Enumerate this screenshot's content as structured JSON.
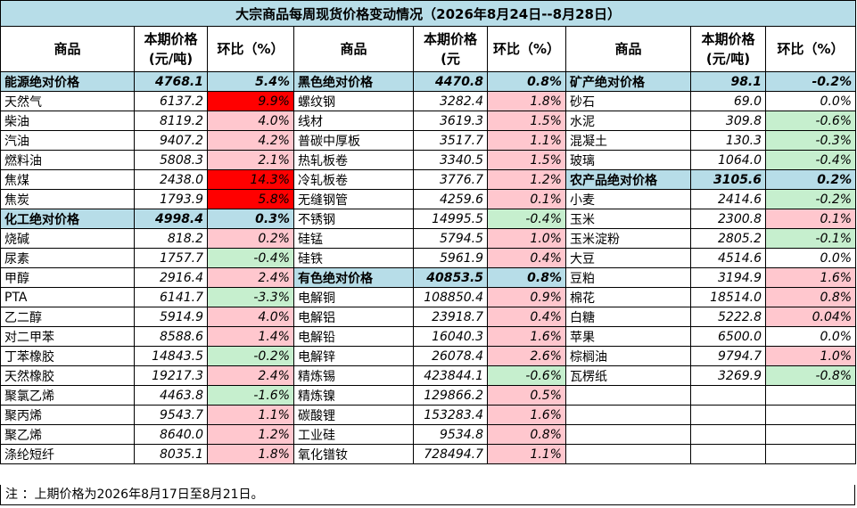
{
  "title": "大宗商品每周现货价格变动情况（2026年8月24日--8月28日）",
  "headers": {
    "name": "商品",
    "price": "本期价格\n(元/吨)",
    "price_col2": "本期价格\n(元",
    "change": "环比（%）"
  },
  "rows": [
    [
      {
        "n": "能源绝对价格",
        "p": "4768.1",
        "c": "5.4%",
        "g": true
      },
      {
        "n": "黑色绝对价格",
        "p": "4470.8",
        "c": "0.8%",
        "g": true
      },
      {
        "n": "矿产绝对价格",
        "p": "98.1",
        "c": "-0.2%",
        "g": true
      }
    ],
    [
      {
        "n": "天然气",
        "p": "6137.2",
        "c": "9.9%",
        "s": "pos-strong"
      },
      {
        "n": "螺纹钢",
        "p": "3282.4",
        "c": "1.8%",
        "s": "pos"
      },
      {
        "n": "砂石",
        "p": "69.0",
        "c": "0.0%",
        "s": "flat"
      }
    ],
    [
      {
        "n": "柴油",
        "p": "8119.2",
        "c": "4.0%",
        "s": "pos"
      },
      {
        "n": "线材",
        "p": "3619.3",
        "c": "1.5%",
        "s": "pos"
      },
      {
        "n": "水泥",
        "p": "309.8",
        "c": "-0.6%",
        "s": "neg"
      }
    ],
    [
      {
        "n": "汽油",
        "p": "9407.2",
        "c": "4.2%",
        "s": "pos"
      },
      {
        "n": "普碳中厚板",
        "p": "3517.7",
        "c": "1.1%",
        "s": "pos"
      },
      {
        "n": "混凝土",
        "p": "130.3",
        "c": "-0.3%",
        "s": "neg"
      }
    ],
    [
      {
        "n": "燃料油",
        "p": "5808.3",
        "c": "2.1%",
        "s": "pos"
      },
      {
        "n": "热轧板卷",
        "p": "3340.5",
        "c": "1.5%",
        "s": "pos"
      },
      {
        "n": "玻璃",
        "p": "1064.0",
        "c": "-0.4%",
        "s": "neg"
      }
    ],
    [
      {
        "n": "焦煤",
        "p": "2438.0",
        "c": "14.3%",
        "s": "pos-strong"
      },
      {
        "n": "冷轧板卷",
        "p": "3776.7",
        "c": "1.2%",
        "s": "pos"
      },
      {
        "n": "农产品绝对价格",
        "p": "3105.6",
        "c": "0.2%",
        "g": true
      }
    ],
    [
      {
        "n": "焦炭",
        "p": "1793.9",
        "c": "5.8%",
        "s": "pos-strong"
      },
      {
        "n": "无缝钢管",
        "p": "4259.6",
        "c": "0.1%",
        "s": "pos"
      },
      {
        "n": "小麦",
        "p": "2414.6",
        "c": "-0.2%",
        "s": "neg"
      }
    ],
    [
      {
        "n": "化工绝对价格",
        "p": "4998.4",
        "c": "0.3%",
        "g": true
      },
      {
        "n": "不锈钢",
        "p": "14995.5",
        "c": "-0.4%",
        "s": "neg"
      },
      {
        "n": "玉米",
        "p": "2300.8",
        "c": "0.1%",
        "s": "pos"
      }
    ],
    [
      {
        "n": "烧碱",
        "p": "818.2",
        "c": "0.2%",
        "s": "pos"
      },
      {
        "n": "硅锰",
        "p": "5794.5",
        "c": "1.0%",
        "s": "pos"
      },
      {
        "n": "玉米淀粉",
        "p": "2805.2",
        "c": "-0.1%",
        "s": "neg"
      }
    ],
    [
      {
        "n": "尿素",
        "p": "1757.7",
        "c": "-0.4%",
        "s": "neg"
      },
      {
        "n": "硅铁",
        "p": "5961.9",
        "c": "0.4%",
        "s": "pos"
      },
      {
        "n": "大豆",
        "p": "4514.6",
        "c": "0.0%",
        "s": "flat"
      }
    ],
    [
      {
        "n": "甲醇",
        "p": "2916.4",
        "c": "2.4%",
        "s": "pos"
      },
      {
        "n": "有色绝对价格",
        "p": "40853.5",
        "c": "0.8%",
        "g": true
      },
      {
        "n": "豆粕",
        "p": "3194.9",
        "c": "1.6%",
        "s": "pos"
      }
    ],
    [
      {
        "n": "PTA",
        "p": "6141.7",
        "c": "-3.3%",
        "s": "neg"
      },
      {
        "n": "电解铜",
        "p": "108850.4",
        "c": "0.9%",
        "s": "pos"
      },
      {
        "n": "棉花",
        "p": "18514.0",
        "c": "0.8%",
        "s": "pos"
      }
    ],
    [
      {
        "n": "乙二醇",
        "p": "5914.9",
        "c": "4.0%",
        "s": "pos"
      },
      {
        "n": "电解铝",
        "p": "23918.7",
        "c": "0.4%",
        "s": "pos"
      },
      {
        "n": "白糖",
        "p": "5222.8",
        "c": "0.04%",
        "s": "pos"
      }
    ],
    [
      {
        "n": "对二甲苯",
        "p": "8588.6",
        "c": "1.4%",
        "s": "pos"
      },
      {
        "n": "电解铅",
        "p": "16040.3",
        "c": "1.6%",
        "s": "pos"
      },
      {
        "n": "苹果",
        "p": "6500.0",
        "c": "0.0%",
        "s": "flat"
      }
    ],
    [
      {
        "n": "丁苯橡胶",
        "p": "14843.5",
        "c": "-0.2%",
        "s": "neg"
      },
      {
        "n": "电解锌",
        "p": "26078.4",
        "c": "2.6%",
        "s": "pos"
      },
      {
        "n": "棕榈油",
        "p": "9794.7",
        "c": "1.0%",
        "s": "pos"
      }
    ],
    [
      {
        "n": "天然橡胶",
        "p": "19217.3",
        "c": "2.4%",
        "s": "pos"
      },
      {
        "n": "精炼锡",
        "p": "423844.1",
        "c": "-0.6%",
        "s": "neg"
      },
      {
        "n": "瓦楞纸",
        "p": "3269.9",
        "c": "-0.8%",
        "s": "neg"
      }
    ],
    [
      {
        "n": "聚氯乙烯",
        "p": "4463.8",
        "c": "-1.6%",
        "s": "neg"
      },
      {
        "n": "精炼镍",
        "p": "129866.2",
        "c": "0.5%",
        "s": "pos"
      },
      null
    ],
    [
      {
        "n": "聚丙烯",
        "p": "9543.7",
        "c": "1.1%",
        "s": "pos"
      },
      {
        "n": "碳酸锂",
        "p": "153283.4",
        "c": "1.6%",
        "s": "pos"
      },
      null
    ],
    [
      {
        "n": "聚乙烯",
        "p": "8640.0",
        "c": "1.2%",
        "s": "pos"
      },
      {
        "n": "工业硅",
        "p": "9534.8",
        "c": "0.8%",
        "s": "pos"
      },
      null
    ],
    [
      {
        "n": "涤纶短纤",
        "p": "8035.1",
        "c": "1.8%",
        "s": "pos"
      },
      {
        "n": "氧化镨钕",
        "p": "728494.7",
        "c": "1.1%",
        "s": "pos"
      },
      null
    ]
  ],
  "footnote": "注 ：上期价格为2026年8月17日至8月21日。",
  "colors": {
    "group_bg": "#b7dde8",
    "rise_strong": "#ff0000",
    "rise": "#ffc7ce",
    "fall": "#c6efce"
  }
}
